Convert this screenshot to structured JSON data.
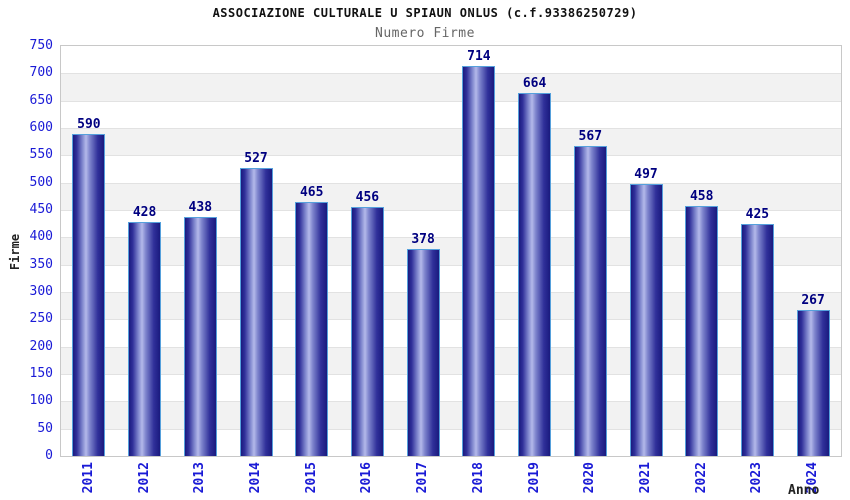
{
  "chart_data": {
    "type": "bar",
    "title": "ASSOCIAZIONE CULTURALE U SPIAUN ONLUS (c.f.93386250729)",
    "subtitle": "Numero Firme",
    "categories": [
      "2011",
      "2012",
      "2013",
      "2014",
      "2015",
      "2016",
      "2017",
      "2018",
      "2019",
      "2020",
      "2021",
      "2022",
      "2023",
      "2024"
    ],
    "values": [
      590,
      428,
      438,
      527,
      465,
      456,
      378,
      714,
      664,
      567,
      497,
      458,
      425,
      267
    ],
    "xlabel": "Anno",
    "ylabel": "Firme",
    "ylim": [
      0,
      750
    ],
    "ytick_step": 50,
    "yticks": [
      750,
      700,
      650,
      600,
      550,
      500,
      450,
      400,
      350,
      300,
      250,
      200,
      150,
      100,
      50,
      0
    ],
    "grid": true,
    "legend_position": "none",
    "colors": {
      "bar_edge": "#1a1a7e",
      "bar_mid": "#30309a",
      "bar_light": "#7e85cd",
      "bar_center": "#b4b9ea",
      "bar_border": "#55a0dc",
      "tick_label": "#1a1ad6",
      "value_label": "#000080",
      "band_gray": "#f2f2f2",
      "band_white": "#ffffff",
      "grid_line": "#e2e2e2",
      "frame": "#c8c8c8",
      "title_color": "#111111",
      "subtitle_gray": "#666666",
      "axis_label": "#222222"
    }
  }
}
